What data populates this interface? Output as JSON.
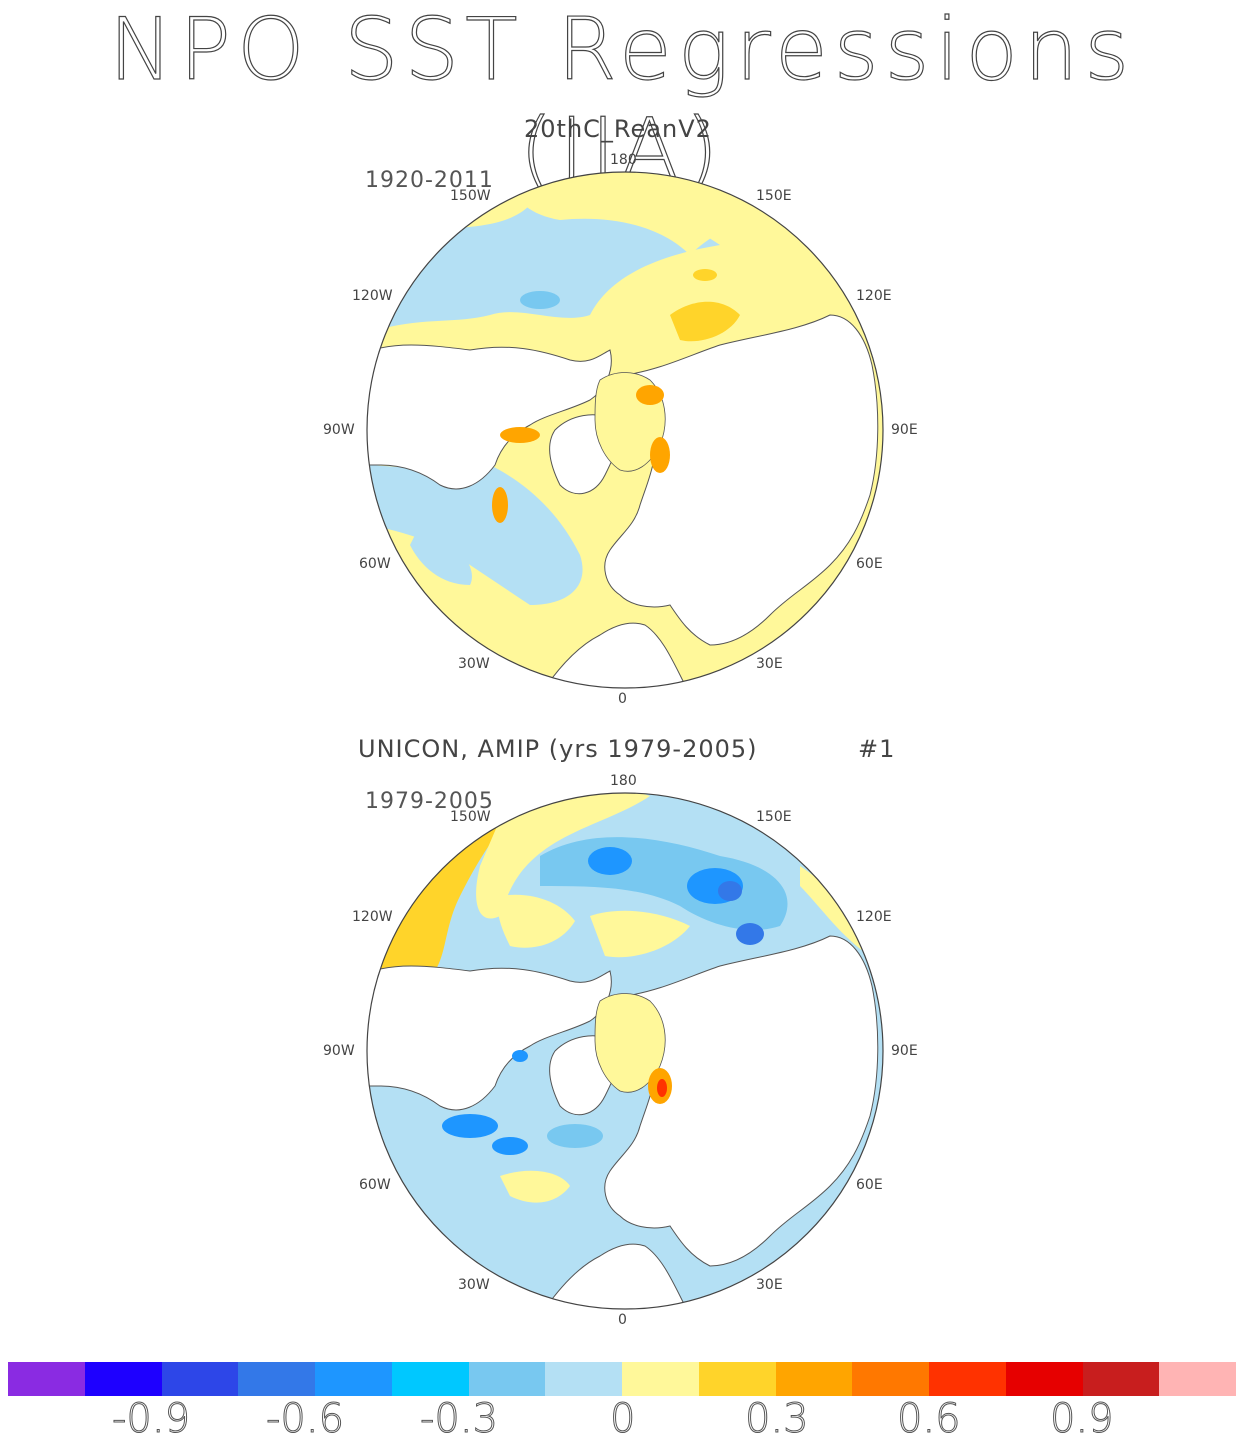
{
  "title": "NPO SST Regressions (JJA)",
  "panels": [
    {
      "title": "20thC_ReanV2",
      "years": "1920-2011",
      "extra": ""
    },
    {
      "title": "UNICON, AMIP (yrs 1979-2005)",
      "years": "1979-2005",
      "extra": "#1"
    }
  ],
  "longitude_labels": {
    "top": "180",
    "bottom": "0",
    "upper_left": "150W",
    "upper_right": "150E",
    "left_upper": "120W",
    "right_upper": "120E",
    "left": "90W",
    "right": "90E",
    "left_lower": "60W",
    "right_lower": "60E",
    "lower_left": "30W",
    "lower_right": "30E"
  },
  "colorbar": {
    "colors": [
      "#8a2be2",
      "#1e00ff",
      "#2d46e8",
      "#3378e8",
      "#1e96ff",
      "#00c8ff",
      "#78c8f0",
      "#b4e0f4",
      "#fff89a",
      "#ffd42a",
      "#ffa500",
      "#ff7800",
      "#ff3200",
      "#e60000",
      "#c81e1e",
      "#ffb4b4"
    ],
    "tick_labels": [
      "-0.9",
      "-0.6",
      "-0.3",
      "0",
      "0.3",
      "0.6",
      "0.9"
    ]
  },
  "map_colors": {
    "land": "#ffffff",
    "coast": "#555555",
    "light_blue": "#b4e0f4",
    "mid_blue": "#78c8f0",
    "blue": "#1e96ff",
    "dark_blue": "#3378e8",
    "yellow": "#fff89a",
    "gold": "#ffd42a",
    "orange": "#ffa500",
    "red": "#ff3200"
  }
}
